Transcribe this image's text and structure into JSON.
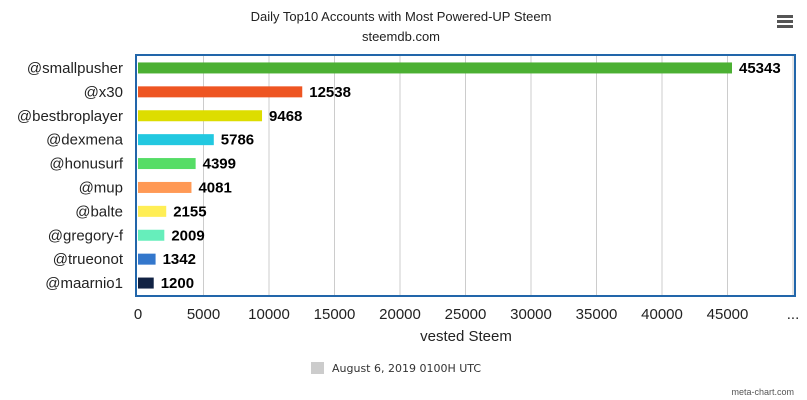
{
  "chart_data": {
    "type": "bar",
    "orientation": "horizontal",
    "title": "Daily Top10 Accounts with Most Powered-UP Steem",
    "subtitle": "steemdb.com",
    "xlabel": "vested Steem",
    "ylabel": "",
    "xlim": [
      0,
      50000
    ],
    "x_ticks": [
      "0",
      "5000",
      "10000",
      "15000",
      "20000",
      "25000",
      "30000",
      "35000",
      "40000",
      "45000",
      "..."
    ],
    "grid": true,
    "legend_position": "bottom",
    "legend_color": "#cccccc",
    "categories": [
      "@smallpusher",
      "@x30",
      "@bestbroplayer",
      "@dexmena",
      "@honusurf",
      "@mup",
      "@balte",
      "@gregory-f",
      "@trueonot",
      "@maarnio1"
    ],
    "series": [
      {
        "name": "August 6, 2019 0100H UTC",
        "values": [
          45343,
          12538,
          9468,
          5786,
          4399,
          4081,
          2155,
          2009,
          1342,
          1200
        ],
        "colors": [
          "#4cb033",
          "#ee5522",
          "#dddd00",
          "#22c8e0",
          "#55dd66",
          "#ff9955",
          "#ffee55",
          "#66eebb",
          "#3377cc",
          "#112244"
        ]
      }
    ]
  },
  "ui": {
    "menu_icon": "hamburger-menu-icon",
    "credit": "meta-chart.com",
    "frame_color": "#2266aa"
  }
}
